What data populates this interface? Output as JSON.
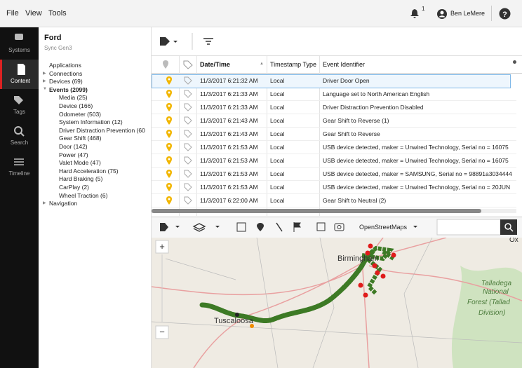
{
  "menu": {
    "items": [
      "File",
      "View",
      "Tools"
    ],
    "notification_count": "1",
    "user": "Ben LeMere"
  },
  "sidebar": {
    "items": [
      "Systems",
      "Content",
      "Tags",
      "Search",
      "Timeline"
    ]
  },
  "device": {
    "name": "Ford",
    "model": "Sync Gen3"
  },
  "tree": [
    {
      "label": "Applications"
    },
    {
      "label": "Connections"
    },
    {
      "label": "Devices (69)"
    },
    {
      "label": "Events (2099)",
      "children": [
        "Media (25)",
        "Device (166)",
        "Odometer (503)",
        "System Information (12)",
        "Driver Distraction Prevention (60",
        "Gear Shift (468)",
        "Door (142)",
        "Power (47)",
        "Valet Mode (47)",
        "Hard Acceleration (75)",
        "Hard Braking (5)",
        "CarPlay (2)",
        "Wheel Traction (6)"
      ]
    },
    {
      "label": "Navigation"
    }
  ],
  "table": {
    "headers": [
      "Date/Time",
      "Timestamp Type",
      "Event Identifier"
    ],
    "rows": [
      [
        "11/3/2017 6:21:32 AM",
        "Local",
        "Driver Door Open"
      ],
      [
        "11/3/2017 6:21:33 AM",
        "Local",
        "Language set to North American English"
      ],
      [
        "11/3/2017 6:21:33 AM",
        "Local",
        "Driver Distraction Prevention Disabled"
      ],
      [
        "11/3/2017 6:21:43 AM",
        "Local",
        "Gear Shift to Reverse (1)"
      ],
      [
        "11/3/2017 6:21:43 AM",
        "Local",
        "Gear Shift to Reverse"
      ],
      [
        "11/3/2017 6:21:53 AM",
        "Local",
        "USB device detected, maker = Unwired Technology, Serial no = 16075"
      ],
      [
        "11/3/2017 6:21:53 AM",
        "Local",
        "USB device detected, maker = Unwired Technology, Serial no = 16075"
      ],
      [
        "11/3/2017 6:21:53 AM",
        "Local",
        "USB device detected, maker = SAMSUNG, Serial no = 98891a3034444"
      ],
      [
        "11/3/2017 6:21:53 AM",
        "Local",
        "USB device detected, maker = Unwired Technology, Serial no = 20JUN"
      ],
      [
        "11/3/2017 6:22:00 AM",
        "Local",
        "Gear Shift to Neutral (2)"
      ]
    ]
  },
  "map": {
    "layer": "OpenStreetMaps",
    "labels": [
      "Tuscaloosa",
      "Birmingham",
      "Talladega",
      "National",
      "Forest (Tallad",
      "Division)",
      "Ox"
    ]
  }
}
